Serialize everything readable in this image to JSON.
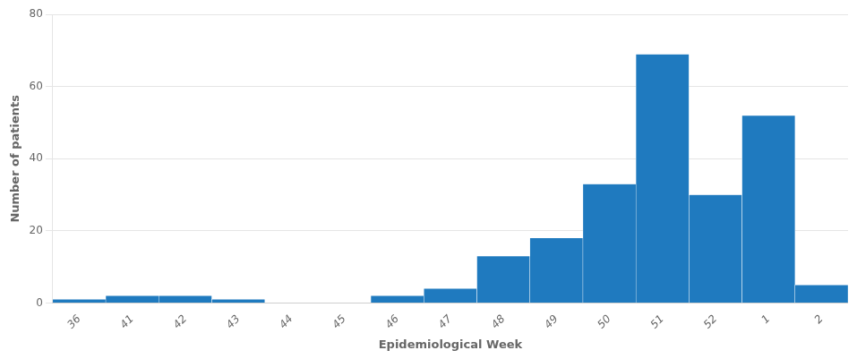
{
  "chart_data": {
    "type": "bar",
    "categories": [
      "36",
      "41",
      "42",
      "43",
      "44",
      "45",
      "46",
      "47",
      "48",
      "49",
      "50",
      "51",
      "52",
      "1",
      "2"
    ],
    "values": [
      1,
      2,
      2,
      1,
      0,
      0,
      2,
      4,
      13,
      18,
      33,
      69,
      30,
      52,
      5
    ],
    "color": "#1f7abf",
    "xlabel": "Epidemiological Week",
    "ylabel": "Number of patients",
    "ylim": [
      0,
      80
    ],
    "yticks": [
      0,
      20,
      40,
      60,
      80
    ],
    "grid": true
  }
}
